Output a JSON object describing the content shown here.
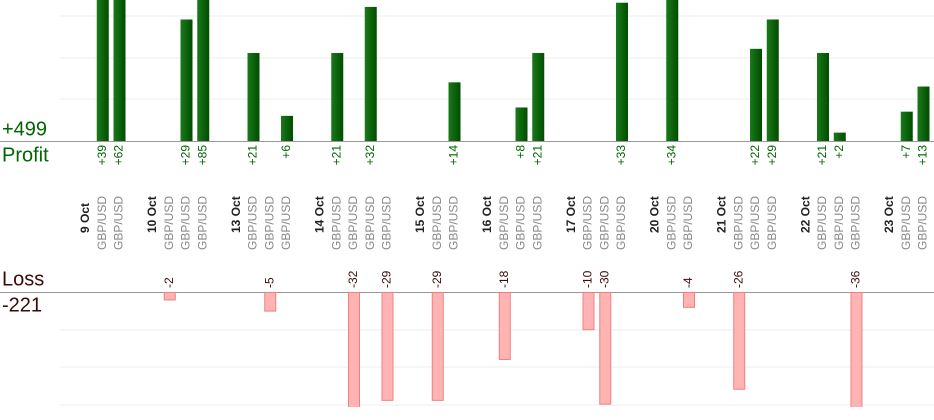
{
  "profit": {
    "label": "Profit",
    "total": {
      "value": 499,
      "label": "+499"
    }
  },
  "loss": {
    "label": "Loss",
    "total": -221
  },
  "days": [
    {
      "date": "9 Oct",
      "trades": [
        {
          "pair": "GBP/USD",
          "value": 39,
          "label": "+39"
        },
        {
          "pair": "GBP/USD",
          "value": 62,
          "label": "+62"
        }
      ]
    },
    {
      "date": "10 Oct",
      "trades": [
        {
          "pair": "GBP/USD",
          "value": -2
        },
        {
          "pair": "GBP/USD",
          "value": 29,
          "label": "+29"
        },
        {
          "pair": "GBP/USD",
          "value": 85,
          "label": "+85"
        }
      ]
    },
    {
      "date": "13 Oct",
      "trades": [
        {
          "pair": "GBP/USD",
          "value": 21,
          "label": "+21"
        },
        {
          "pair": "GBP/USD",
          "value": -5
        },
        {
          "pair": "GBP/USD",
          "value": 6,
          "label": "+6"
        }
      ]
    },
    {
      "date": "14 Oct",
      "trades": [
        {
          "pair": "GBP/USD",
          "value": 21,
          "label": "+21"
        },
        {
          "pair": "GBP/USD",
          "value": -32
        },
        {
          "pair": "GBP/USD",
          "value": 32,
          "label": "+32"
        },
        {
          "pair": "GBP/USD",
          "value": -29
        }
      ]
    },
    {
      "date": "15 Oct",
      "trades": [
        {
          "pair": "GBP/USD",
          "value": -29
        },
        {
          "pair": "GBP/USD",
          "value": 14,
          "label": "+14"
        }
      ]
    },
    {
      "date": "16 Oct",
      "trades": [
        {
          "pair": "GBP/USD",
          "value": -18
        },
        {
          "pair": "GBP/USD",
          "value": 8,
          "label": "+8"
        },
        {
          "pair": "GBP/USD",
          "value": 21,
          "label": "+21"
        }
      ]
    },
    {
      "date": "17 Oct",
      "trades": [
        {
          "pair": "GBP/USD",
          "value": -10
        },
        {
          "pair": "GBP/USD",
          "value": -30
        },
        {
          "pair": "GBP/USD",
          "value": 33,
          "label": "+33"
        }
      ]
    },
    {
      "date": "20 Oct",
      "trades": [
        {
          "pair": "GBP/USD",
          "value": 34,
          "label": "+34"
        },
        {
          "pair": "GBP/USD",
          "value": -4
        }
      ]
    },
    {
      "date": "21 Oct",
      "trades": [
        {
          "pair": "GBP/USD",
          "value": -26
        },
        {
          "pair": "GBP/USD",
          "value": 22,
          "label": "+22"
        },
        {
          "pair": "GBP/USD",
          "value": 29,
          "label": "+29"
        }
      ]
    },
    {
      "date": "22 Oct",
      "trades": [
        {
          "pair": "GBP/USD",
          "value": 21,
          "label": "+21"
        },
        {
          "pair": "GBP/USD",
          "value": 2,
          "label": "+2"
        },
        {
          "pair": "GBP/USD",
          "value": -36
        }
      ]
    },
    {
      "date": "23 Oct",
      "trades": [
        {
          "pair": "GBP/USD",
          "value": 7,
          "label": "+7"
        },
        {
          "pair": "GBP/USD",
          "value": 13,
          "label": "+13"
        }
      ]
    }
  ]
}
